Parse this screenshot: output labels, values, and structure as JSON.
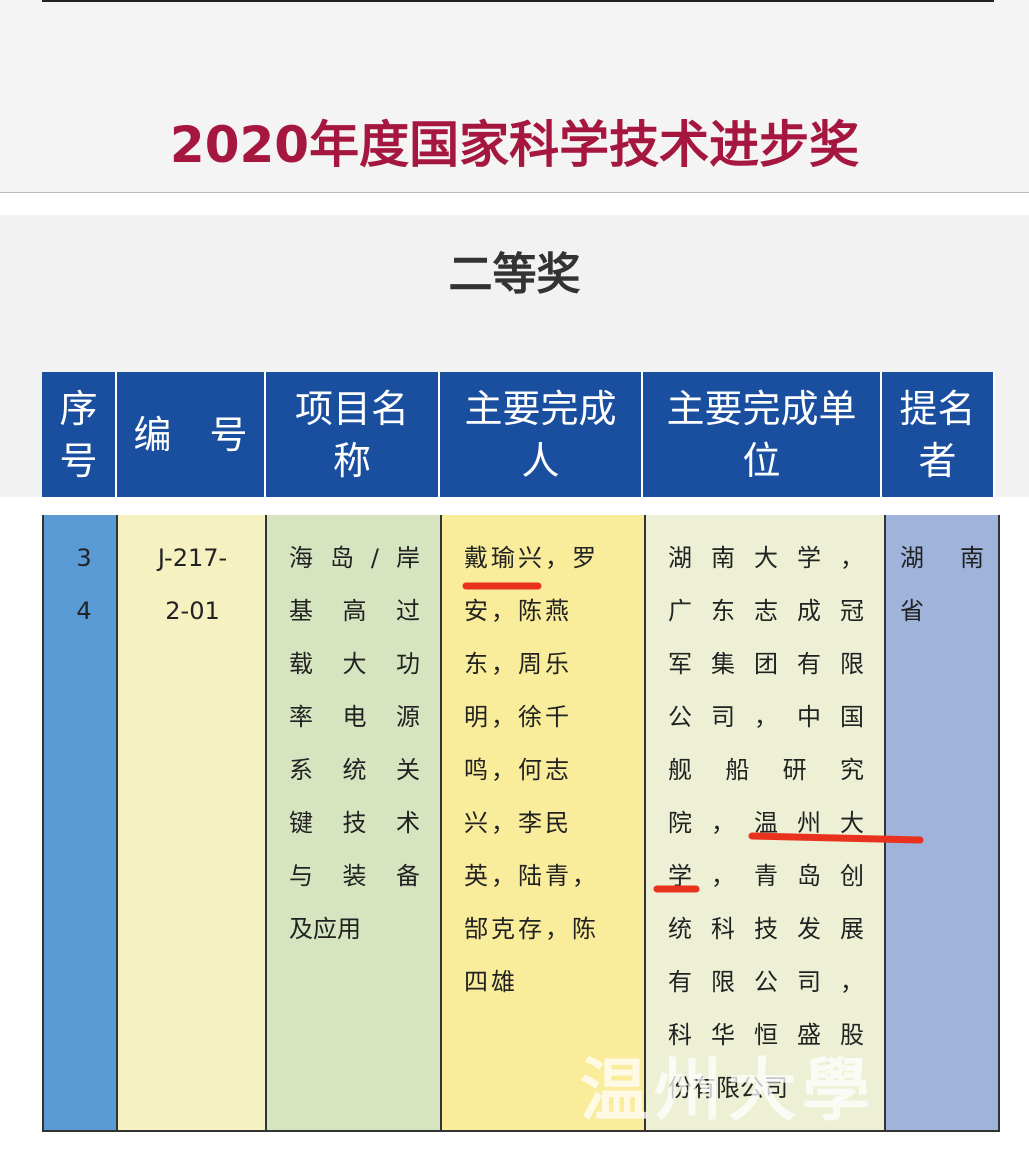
{
  "header": {
    "title": "2020年度国家科学技术进步奖",
    "subtitle": "二等奖"
  },
  "table": {
    "columns": [
      [
        "序",
        "号"
      ],
      [
        "编　号"
      ],
      [
        "项目名",
        "称"
      ],
      [
        "主要完成",
        "人"
      ],
      [
        "主要完成单",
        "位"
      ],
      [
        "提名",
        "者"
      ]
    ],
    "rows": [
      [
        [
          "3",
          "4"
        ],
        [
          "J-217-",
          "2-01"
        ],
        [
          "海岛/岸",
          "基高过",
          "载大功",
          "率电源",
          "系统关",
          "键技术",
          "与装备",
          "及应用"
        ],
        [
          "戴瑜兴，罗",
          "安，陈燕",
          "东，周乐",
          "明，徐千",
          "鸣，何志",
          "兴，李民",
          "英，陆青，",
          "郜克存，陈",
          "四雄"
        ],
        [
          "湖南大学，",
          "广东志成冠",
          "军集团有限",
          "公司，中国",
          "舰船研究",
          "院，温州大",
          "学，青岛创",
          "统科技发展",
          "有限公司，",
          "科华恒盛股",
          "份有限公司"
        ],
        [
          "湖南",
          "省"
        ]
      ]
    ]
  },
  "watermark": "温州大學"
}
